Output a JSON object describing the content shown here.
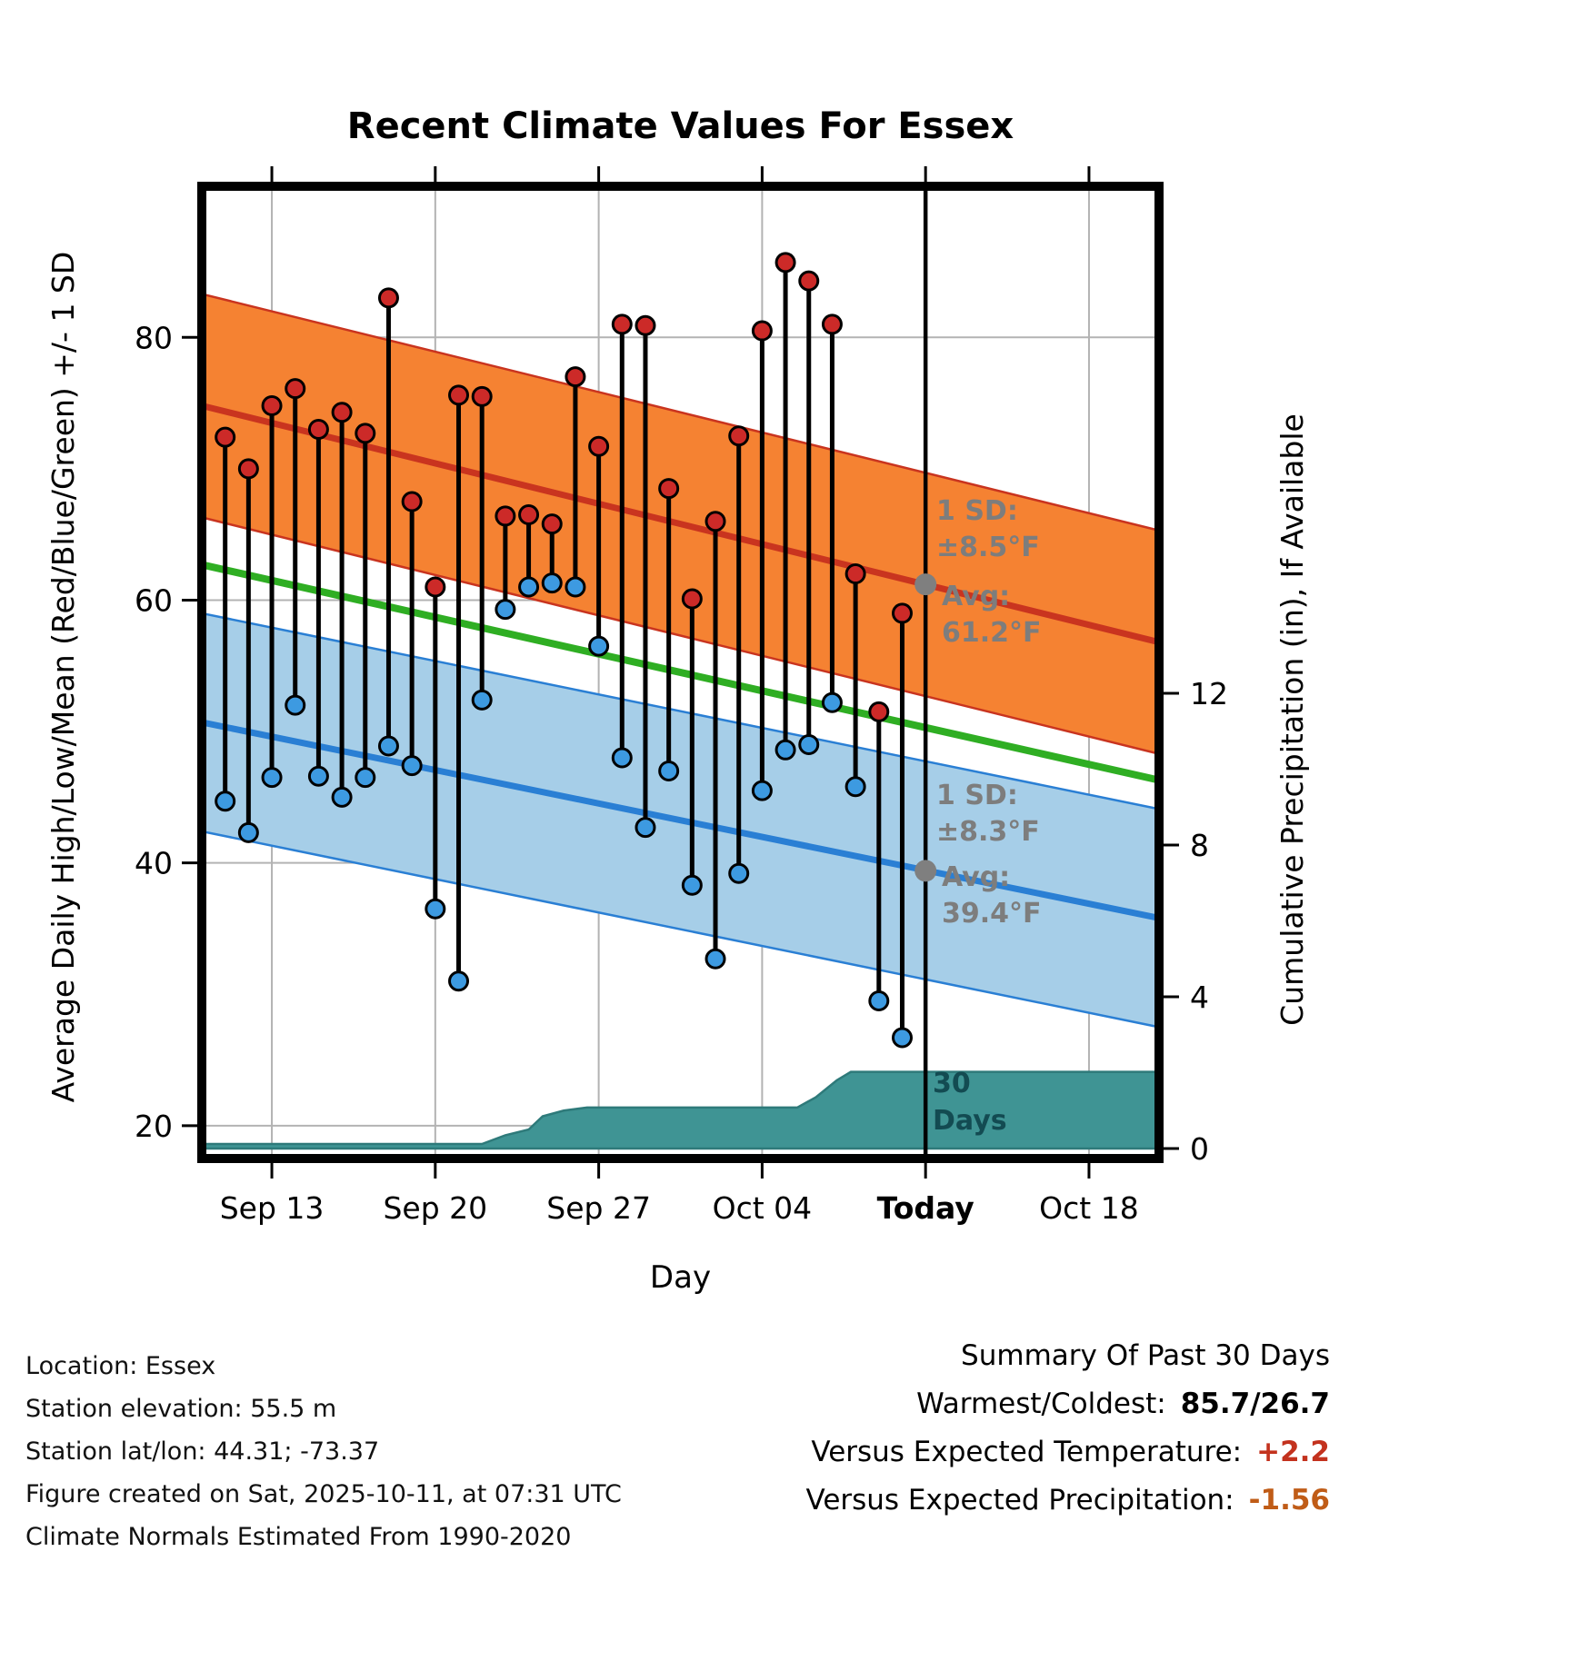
{
  "title": "Recent Climate Values For Essex",
  "axes": {
    "x_label": "Day",
    "y_left_label": "Average Daily High/Low/Mean (Red/Blue/Green) +/- 1 SD",
    "y_right_label": "Cumulative Precipitation (in), If Available",
    "x_ticks": [
      {
        "day": 3,
        "label": "Sep 13",
        "bold": false
      },
      {
        "day": 10,
        "label": "Sep 20",
        "bold": false
      },
      {
        "day": 17,
        "label": "Sep 27",
        "bold": false
      },
      {
        "day": 24,
        "label": "Oct 04",
        "bold": false
      },
      {
        "day": 31,
        "label": "Today",
        "bold": true
      },
      {
        "day": 38,
        "label": "Oct 18",
        "bold": false
      }
    ],
    "y_left_ticks": [
      20,
      40,
      60,
      80
    ],
    "y_right_ticks": [
      0,
      4,
      8,
      12
    ]
  },
  "chart_data": {
    "type": "line",
    "x_unit": "day",
    "x_range": [
      "Sep 10",
      "Oct 21"
    ],
    "ylim_temp": [
      17.5,
      91.5
    ],
    "ylim_precip": [
      0,
      25.6
    ],
    "grid": true,
    "start_day_index": 1,
    "dates": [
      "Sep 11",
      "Sep 12",
      "Sep 13",
      "Sep 14",
      "Sep 15",
      "Sep 16",
      "Sep 17",
      "Sep 18",
      "Sep 19",
      "Sep 20",
      "Sep 21",
      "Sep 22",
      "Sep 23",
      "Sep 24",
      "Sep 25",
      "Sep 26",
      "Sep 27",
      "Sep 28",
      "Sep 29",
      "Sep 30",
      "Oct 01",
      "Oct 02",
      "Oct 03",
      "Oct 04",
      "Oct 05",
      "Oct 06",
      "Oct 07",
      "Oct 08",
      "Oct 09",
      "Oct 10"
    ],
    "series": [
      {
        "name": "daily_high_f",
        "color": "#cc2a28",
        "values": [
          72.4,
          70.0,
          74.8,
          76.1,
          73.0,
          74.3,
          72.7,
          83.0,
          67.5,
          61.0,
          75.6,
          75.5,
          66.4,
          66.5,
          65.8,
          77.0,
          71.7,
          81.0,
          80.9,
          68.5,
          60.1,
          66.0,
          72.5,
          80.5,
          85.7,
          84.3,
          81.0,
          62.0,
          51.5,
          59.0
        ]
      },
      {
        "name": "daily_low_f",
        "color": "#3d9ae1",
        "values": [
          44.7,
          42.3,
          46.5,
          52.0,
          46.6,
          45.0,
          46.5,
          48.9,
          47.4,
          36.5,
          31.0,
          52.4,
          59.3,
          61.0,
          61.3,
          61.0,
          56.5,
          48.0,
          42.7,
          47.0,
          38.3,
          32.7,
          39.2,
          45.5,
          48.6,
          49.0,
          52.2,
          45.8,
          29.5,
          26.7
        ]
      }
    ],
    "normals": {
      "high_avg_start": 74.8,
      "high_avg_end": 56.8,
      "high_sd": 8.5,
      "low_avg_start": 50.7,
      "low_avg_end": 35.8,
      "low_sd": 8.3,
      "mean_start": 62.7,
      "mean_end": 46.3,
      "today_high_avg": 61.2,
      "today_low_avg": 39.4
    },
    "precip_steps": [
      [
        0,
        0.12
      ],
      [
        12,
        0.12
      ],
      [
        13,
        0.35
      ],
      [
        14,
        0.5
      ],
      [
        14.6,
        0.85
      ],
      [
        15.5,
        1.0
      ],
      [
        16.5,
        1.08
      ],
      [
        25.5,
        1.08
      ],
      [
        26.3,
        1.35
      ],
      [
        27.2,
        1.8
      ],
      [
        27.8,
        2.02
      ],
      [
        41,
        2.02
      ]
    ],
    "today": {
      "label": "Today",
      "day_index": 31
    }
  },
  "annotations": {
    "high": {
      "sd_line1": "1 SD:",
      "sd_line2": "±8.5°F",
      "avg_line1": "Avg:",
      "avg_line2": "61.2°F"
    },
    "low": {
      "sd_line1": "1 SD:",
      "sd_line2": "±8.3°F",
      "avg_line1": "Avg:",
      "avg_line2": "39.4°F"
    },
    "precip_line1": "30",
    "precip_line2": "Days"
  },
  "footer_left": {
    "lines": [
      "Location: Essex",
      "Station elevation: 55.5 m",
      "Station lat/lon: 44.31; -73.37",
      "Figure created on Sat, 2025-10-11, at 07:31 UTC",
      "Climate Normals Estimated From 1990-2020"
    ]
  },
  "summary": {
    "title": "Summary Of Past 30 Days",
    "rows": [
      {
        "label": "Warmest/Coldest:",
        "value": "85.7/26.7",
        "color": "#000000"
      },
      {
        "label": "Versus Expected Temperature:",
        "value": "+2.2",
        "color": "#c3321e"
      },
      {
        "label": "Versus Expected Precipitation:",
        "value": "-1.56",
        "color": "#c05c17"
      }
    ]
  },
  "colors": {
    "high_band": "#f58232",
    "high_line": "#c9341f",
    "high_dot": "#cc2a28",
    "low_band": "#a6cee8",
    "low_line": "#2a7fd4",
    "low_dot": "#3d9ae1",
    "mean_line": "#2fae23",
    "precip_fill": "#3f9494",
    "precip_edge": "#2e7a7a",
    "precip_text": "#134b52",
    "stem": "#000000",
    "today_line": "#000000",
    "gray_dot": "#7f7f7f",
    "annotation_text": "#7d7d7d",
    "grid": "#b3b3b3"
  }
}
